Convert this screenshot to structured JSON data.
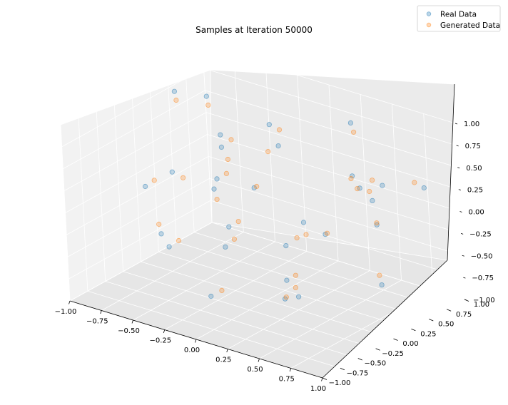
{
  "chart_data": {
    "type": "scatter",
    "title": "Samples at Iteration 50000",
    "projection": "3d",
    "xlim": [
      -1.0,
      1.0
    ],
    "ylim": [
      -1.0,
      1.0
    ],
    "zlim": [
      -1.0,
      1.0
    ],
    "x_ticks": [
      "−1.00",
      "−0.75",
      "−0.50",
      "−0.25",
      "0.00",
      "0.25",
      "0.50",
      "0.75",
      "1.00"
    ],
    "y_ticks": [
      "−1.00",
      "−0.75",
      "−0.50",
      "−0.25",
      "0.00",
      "0.25",
      "0.50",
      "0.75",
      "1.00"
    ],
    "z_ticks": [
      "−1.00",
      "−0.75",
      "−0.50",
      "−0.25",
      "0.00",
      "0.25",
      "0.50",
      "0.75",
      "1.00"
    ],
    "x_tick_values": [
      -1.0,
      -0.75,
      -0.5,
      -0.25,
      0.0,
      0.25,
      0.5,
      0.75,
      1.0
    ],
    "y_tick_values": [
      -1.0,
      -0.75,
      -0.5,
      -0.25,
      0.0,
      0.25,
      0.5,
      0.75,
      1.0
    ],
    "z_tick_values": [
      -1.0,
      -0.75,
      -0.5,
      -0.25,
      0.0,
      0.25,
      0.5,
      0.75,
      1.0
    ],
    "grid": true,
    "legend_position": "upper right",
    "series": [
      {
        "name": "Real Data",
        "color": "#1f77b4",
        "opacity": 0.25,
        "points": [
          [
            -0.82,
            0.71,
            0.64
          ],
          [
            -0.55,
            0.42,
            0.31
          ],
          [
            -0.31,
            -0.12,
            0.18
          ],
          [
            0.12,
            0.35,
            -0.22
          ],
          [
            0.48,
            -0.52,
            0.06
          ],
          [
            -0.66,
            -0.28,
            -0.41
          ],
          [
            0.27,
            0.81,
            0.77
          ],
          [
            0.71,
            0.14,
            0.52
          ],
          [
            -0.08,
            -0.63,
            -0.71
          ],
          [
            0.55,
            0.62,
            -0.18
          ],
          [
            -0.42,
            0.18,
            -0.66
          ],
          [
            0.86,
            -0.21,
            0.88
          ],
          [
            -0.18,
            0.57,
            0.42
          ],
          [
            0.36,
            -0.33,
            -0.47
          ],
          [
            -0.74,
            0.05,
            0.11
          ],
          [
            0.63,
            0.44,
            0.21
          ],
          [
            0.02,
            0.12,
            0.95
          ],
          [
            -0.29,
            -0.81,
            -0.16
          ],
          [
            0.91,
            0.68,
            0.37
          ],
          [
            -0.51,
            0.77,
            -0.29
          ],
          [
            0.18,
            -0.06,
            -0.88
          ],
          [
            -0.87,
            0.36,
            0.83
          ],
          [
            0.44,
            0.91,
            0.09
          ],
          [
            -0.13,
            -0.38,
            0.49
          ],
          [
            0.69,
            -0.74,
            -0.33
          ],
          [
            -0.61,
            -0.55,
            0.27
          ],
          [
            0.09,
            0.69,
            -0.52
          ],
          [
            0.77,
            0.27,
            -0.61
          ],
          [
            -0.36,
            0.09,
            0.68
          ],
          [
            0.24,
            -0.88,
            0.33
          ]
        ]
      },
      {
        "name": "Generated Data",
        "color": "#ff7f0e",
        "opacity": 0.25,
        "points": [
          [
            -0.78,
            0.66,
            0.58
          ],
          [
            -0.48,
            0.38,
            0.22
          ],
          [
            -0.25,
            -0.19,
            0.12
          ],
          [
            0.17,
            0.29,
            -0.31
          ],
          [
            0.53,
            -0.45,
            0.14
          ],
          [
            -0.71,
            -0.22,
            -0.35
          ],
          [
            0.32,
            0.76,
            0.71
          ],
          [
            0.66,
            0.19,
            0.47
          ],
          [
            -0.02,
            -0.58,
            -0.64
          ],
          [
            0.59,
            0.55,
            -0.11
          ],
          [
            -0.38,
            0.24,
            -0.58
          ],
          [
            0.82,
            -0.16,
            0.81
          ],
          [
            -0.23,
            0.51,
            0.36
          ],
          [
            0.41,
            -0.29,
            -0.41
          ],
          [
            -0.69,
            0.11,
            0.04
          ],
          [
            0.58,
            0.49,
            0.27
          ],
          [
            0.07,
            0.17,
            0.89
          ],
          [
            -0.24,
            -0.76,
            -0.09
          ],
          [
            0.87,
            0.62,
            0.44
          ],
          [
            -0.46,
            0.72,
            -0.23
          ],
          [
            0.22,
            -0.11,
            -0.82
          ],
          [
            -0.83,
            0.31,
            0.77
          ],
          [
            0.39,
            0.86,
            0.15
          ],
          [
            -0.08,
            -0.33,
            0.55
          ],
          [
            0.64,
            -0.69,
            -0.27
          ],
          [
            -0.57,
            -0.49,
            0.33
          ],
          [
            0.14,
            0.63,
            -0.46
          ],
          [
            0.72,
            0.33,
            -0.55
          ],
          [
            -0.31,
            0.15,
            0.62
          ],
          [
            0.29,
            -0.83,
            0.39
          ]
        ]
      }
    ]
  }
}
